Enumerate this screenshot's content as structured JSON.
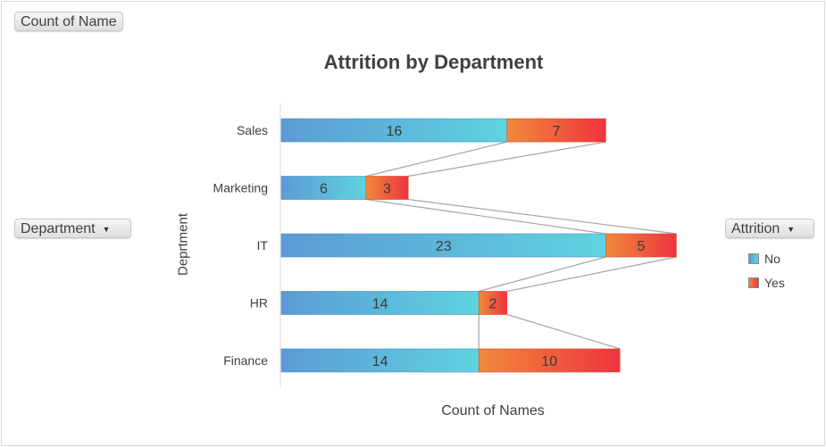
{
  "field_buttons": {
    "values_field": "Count of Name",
    "row_field": "Department",
    "column_field": "Attrition"
  },
  "chart_data": {
    "type": "bar",
    "orientation": "horizontal",
    "stacked": true,
    "title": "Attrition by Department",
    "xlabel": "Count of Names",
    "ylabel": "Deprtment",
    "categories": [
      "Sales",
      "Marketing",
      "IT",
      "HR",
      "Finance"
    ],
    "series": [
      {
        "name": "No",
        "values": [
          16,
          6,
          23,
          14,
          14
        ],
        "colors": [
          "#5b9bd5",
          "#5fd3df"
        ]
      },
      {
        "name": "Yes",
        "values": [
          7,
          3,
          5,
          2,
          10
        ],
        "colors": [
          "#f08a3a",
          "#ee3340"
        ]
      }
    ],
    "series_lines": true,
    "legend_position": "right",
    "grid": false
  }
}
